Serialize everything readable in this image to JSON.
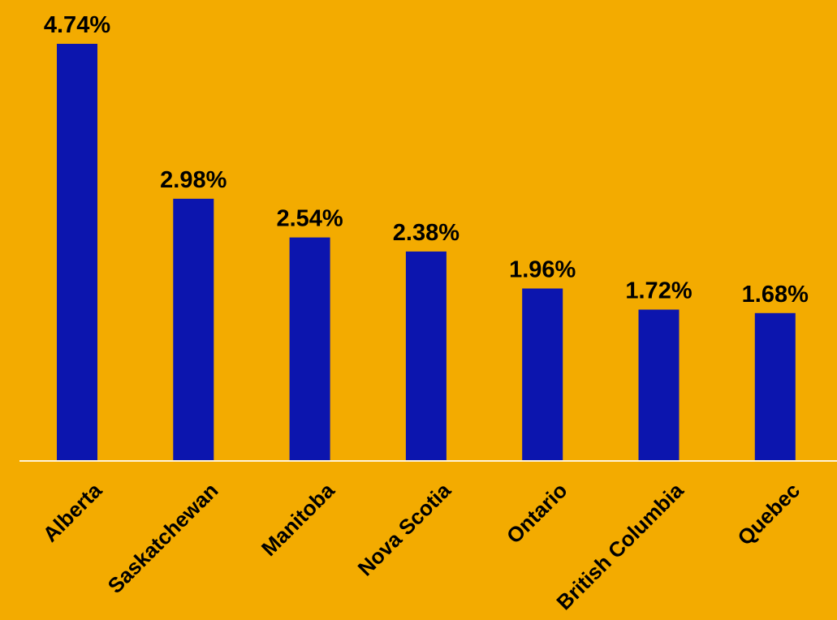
{
  "chart_data": {
    "type": "bar",
    "categories": [
      "Alberta",
      "Saskatchewan",
      "Manitoba",
      "Nova Scotia",
      "Ontario",
      "British Columbia",
      "Quebec"
    ],
    "values": [
      4.74,
      2.98,
      2.54,
      2.38,
      1.96,
      1.72,
      1.68
    ],
    "value_labels": [
      "4.74%",
      "2.98%",
      "2.54%",
      "2.38%",
      "1.96%",
      "1.72%",
      "1.68%"
    ],
    "ylim": [
      0,
      4.74
    ],
    "grid": false,
    "legend": "none"
  },
  "colors": {
    "background": "#F3AB00",
    "bar": "#0C15AE",
    "text": "#000000",
    "baseline": "#FFF3D6"
  }
}
